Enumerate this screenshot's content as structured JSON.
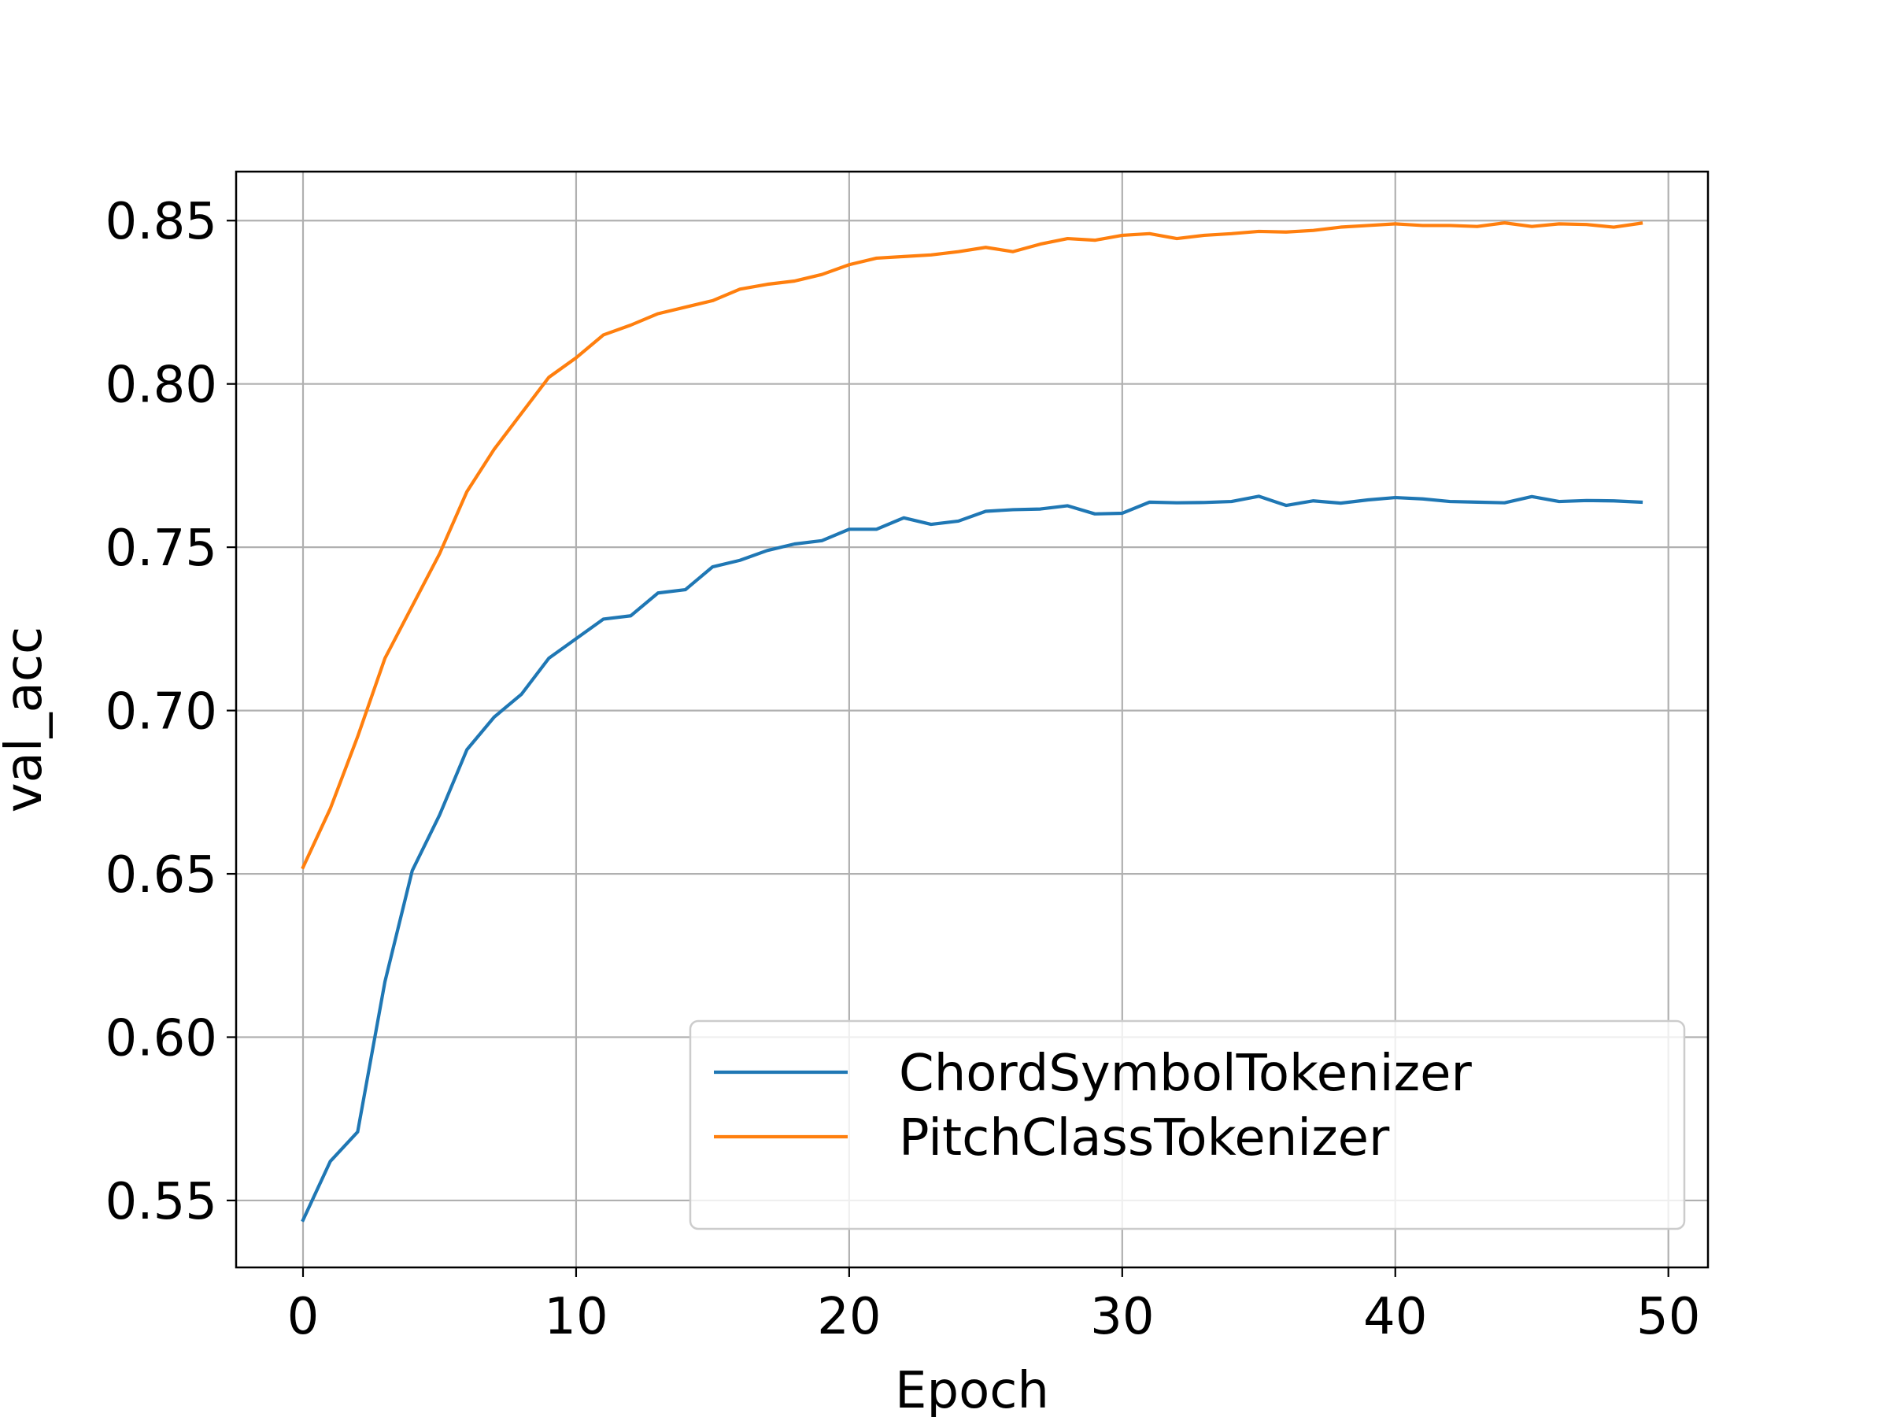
{
  "chart_data": {
    "type": "line",
    "title": "",
    "xlabel": "Epoch",
    "ylabel": "val_acc",
    "xlim": [
      -2.45,
      51.45
    ],
    "ylim": [
      0.5295,
      0.865
    ],
    "xticks": [
      0,
      10,
      20,
      30,
      40,
      50
    ],
    "xtick_labels": [
      "0",
      "10",
      "20",
      "30",
      "40",
      "50"
    ],
    "yticks": [
      0.55,
      0.6,
      0.65,
      0.7,
      0.75,
      0.8,
      0.85
    ],
    "ytick_labels": [
      "0.55",
      "0.60",
      "0.65",
      "0.70",
      "0.75",
      "0.80",
      "0.85"
    ],
    "grid": true,
    "legend_position": "lower-right",
    "x": [
      0,
      1,
      2,
      3,
      4,
      5,
      6,
      7,
      8,
      9,
      10,
      11,
      12,
      13,
      14,
      15,
      16,
      17,
      18,
      19,
      20,
      21,
      22,
      23,
      24,
      25,
      26,
      27,
      28,
      29,
      30,
      31,
      32,
      33,
      34,
      35,
      36,
      37,
      38,
      39,
      40,
      41,
      42,
      43,
      44,
      45,
      46,
      47,
      48,
      49
    ],
    "series": [
      {
        "name": "ChordSymbolTokenizer",
        "color": "#1f77b4",
        "values": [
          0.544,
          0.562,
          0.571,
          0.617,
          0.651,
          0.668,
          0.688,
          0.698,
          0.705,
          0.716,
          0.722,
          0.728,
          0.729,
          0.736,
          0.737,
          0.744,
          0.746,
          0.749,
          0.751,
          0.752,
          0.7555,
          0.7555,
          0.759,
          0.757,
          0.758,
          0.761,
          0.7615,
          0.7617,
          0.7627,
          0.7602,
          0.7604,
          0.7638,
          0.7636,
          0.7637,
          0.764,
          0.7656,
          0.7628,
          0.7642,
          0.7635,
          0.7645,
          0.7652,
          0.7648,
          0.764,
          0.7638,
          0.7636,
          0.7655,
          0.764,
          0.7643,
          0.7642,
          0.7638
        ]
      },
      {
        "name": "PitchClassTokenizer",
        "color": "#ff7f0e",
        "values": [
          0.652,
          0.67,
          0.692,
          0.716,
          0.732,
          0.748,
          0.767,
          0.78,
          0.791,
          0.802,
          0.808,
          0.815,
          0.818,
          0.8215,
          0.8235,
          0.8255,
          0.829,
          0.8305,
          0.8315,
          0.8335,
          0.8365,
          0.8385,
          0.839,
          0.8395,
          0.8405,
          0.8418,
          0.8405,
          0.8428,
          0.8445,
          0.844,
          0.8455,
          0.846,
          0.8445,
          0.8455,
          0.846,
          0.8467,
          0.8465,
          0.847,
          0.848,
          0.8485,
          0.849,
          0.8485,
          0.8485,
          0.8482,
          0.8493,
          0.8482,
          0.849,
          0.8488,
          0.848,
          0.8492
        ]
      }
    ]
  }
}
